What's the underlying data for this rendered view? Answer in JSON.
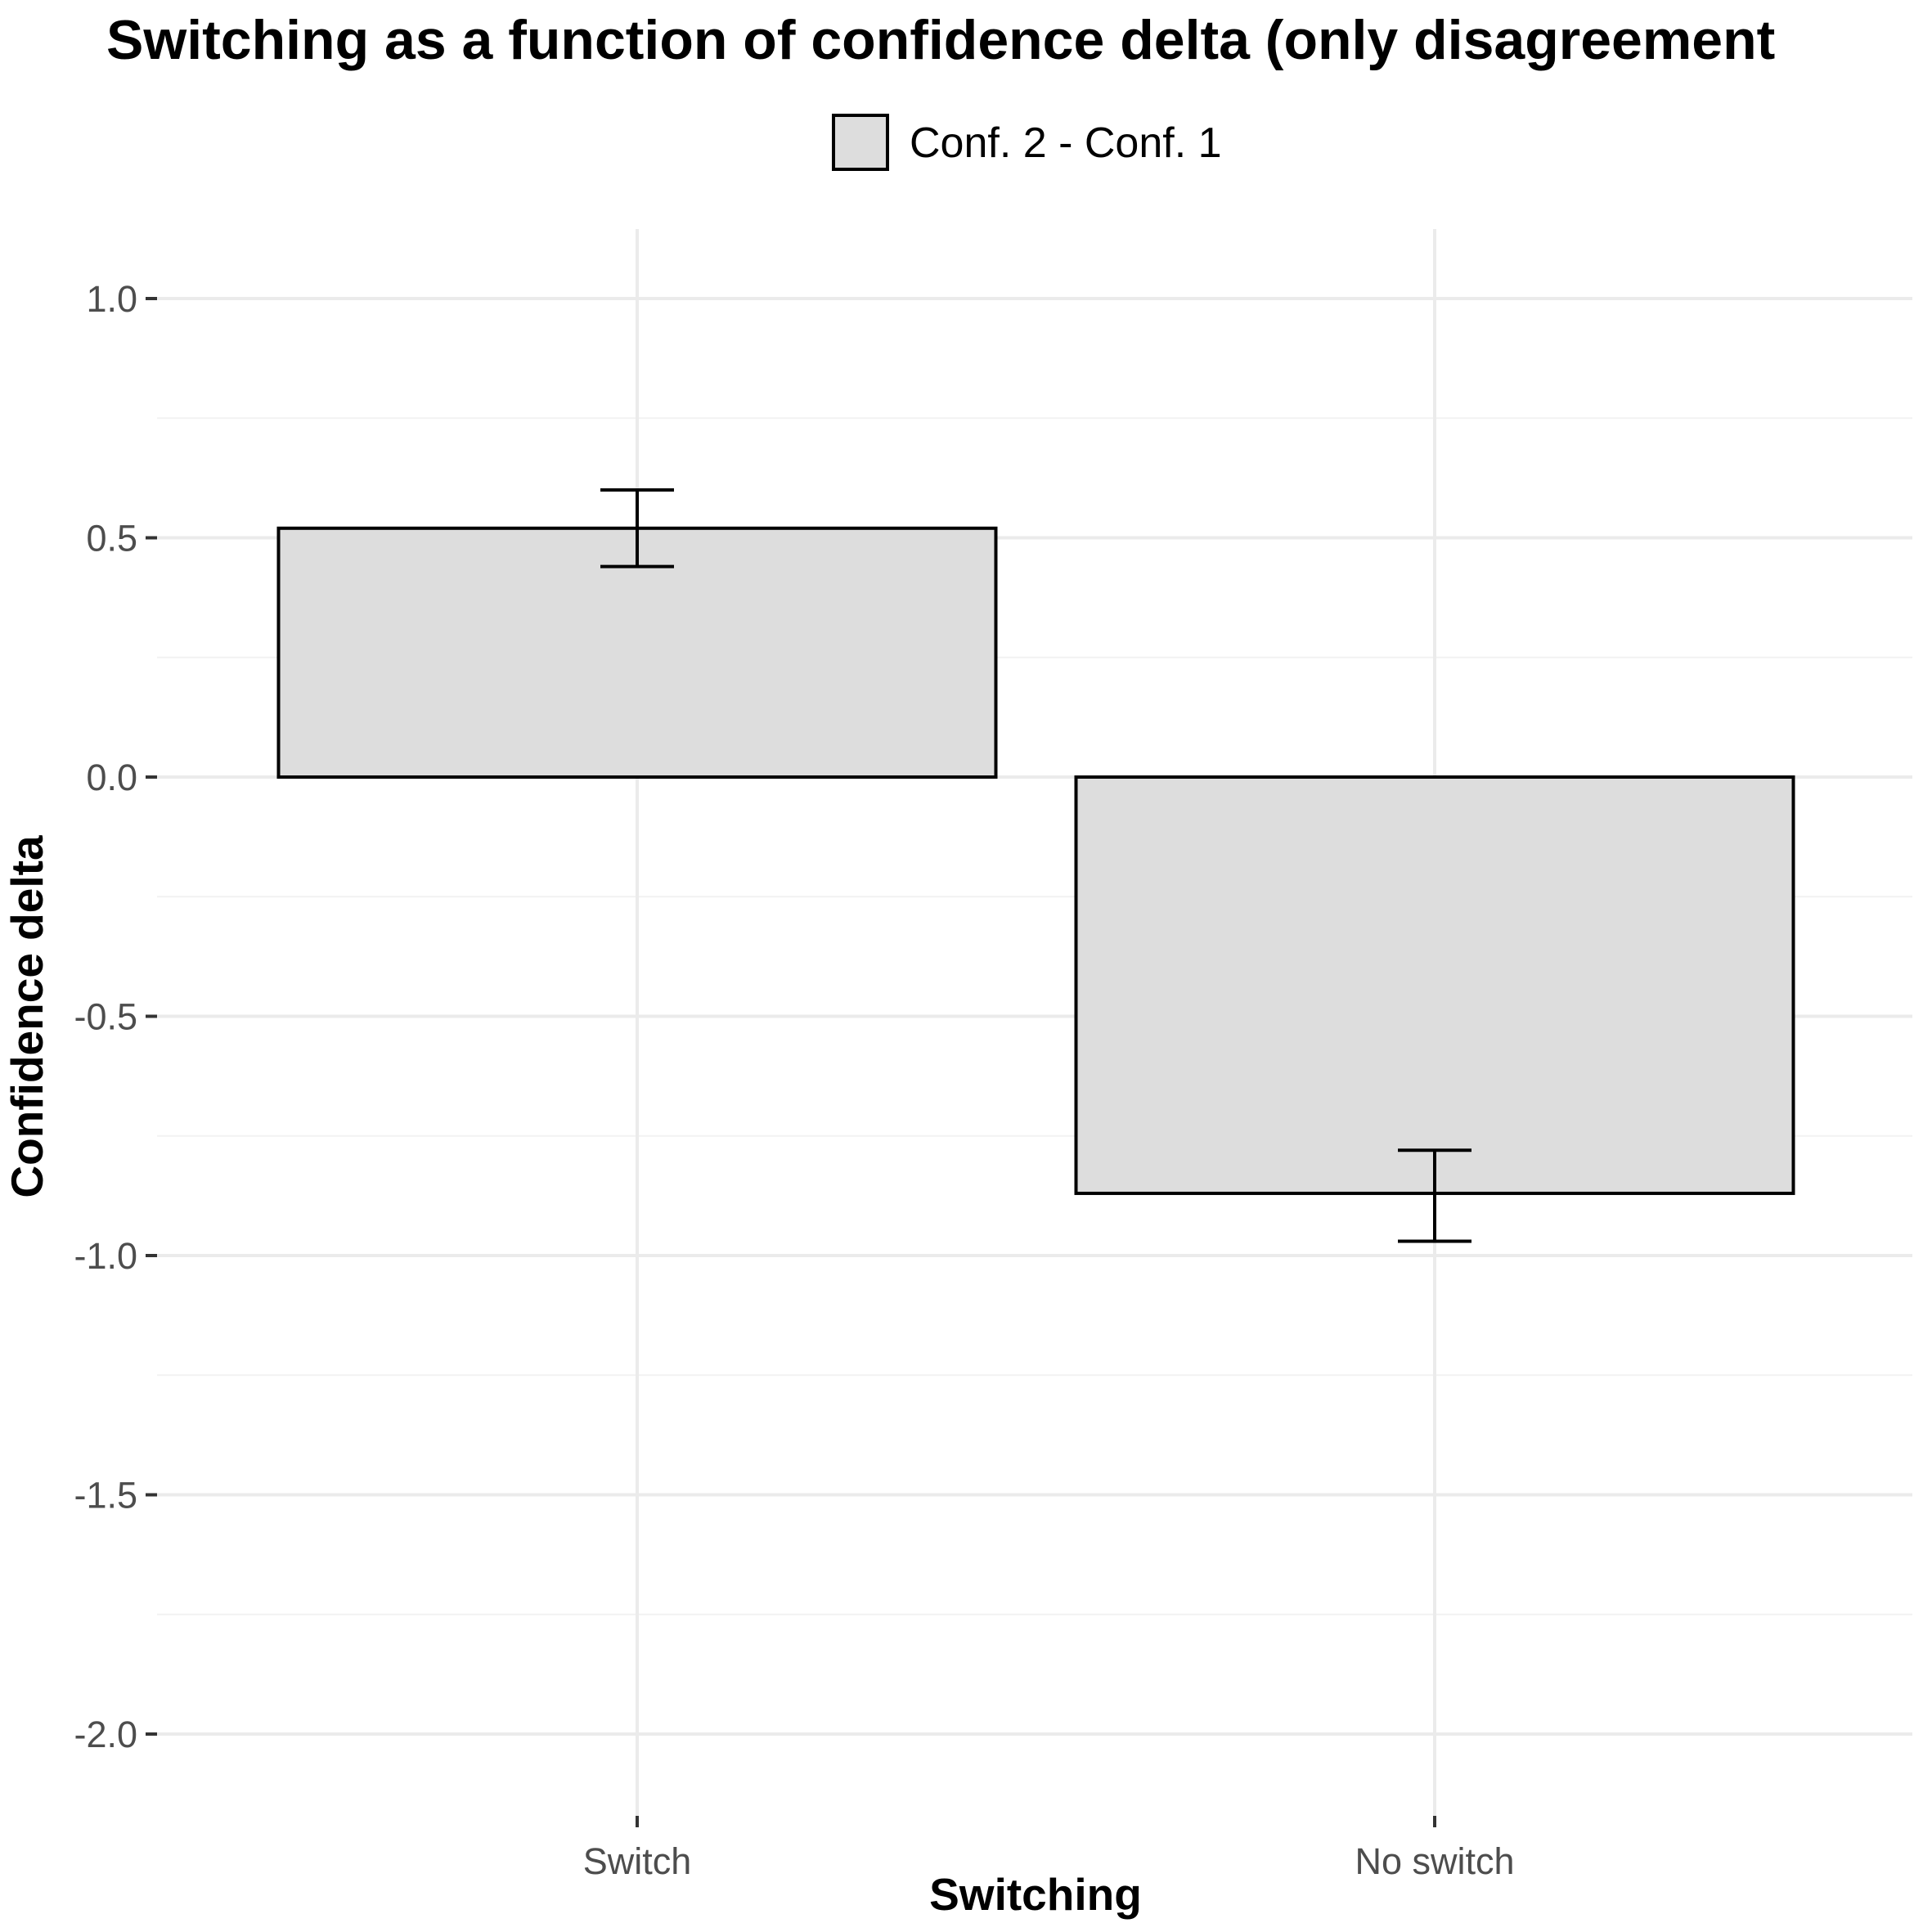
{
  "chart_data": {
    "type": "bar",
    "title": "Switching as a function of confidence delta (only disagreement",
    "xlabel": "Switching",
    "ylabel": "Confidence delta",
    "categories": [
      "Switch",
      "No switch"
    ],
    "series": [
      {
        "name": "Conf. 2 - Conf. 1",
        "values": [
          0.52,
          -0.87
        ],
        "error_low": [
          0.44,
          -0.97
        ],
        "error_high": [
          0.6,
          -0.78
        ]
      }
    ],
    "ylim": [
      -2.15,
      1.15
    ],
    "yticks": [
      1.0,
      0.5,
      0.0,
      -0.5,
      -1.0,
      -1.5,
      -2.0
    ],
    "ytick_labels": [
      "1.0",
      "0.5",
      "0.0",
      "-0.5",
      "-1.0",
      "-1.5",
      "-2.0"
    ],
    "grid": true,
    "legend_position": "top"
  },
  "colors": {
    "bar_fill": "#dddddd",
    "bar_stroke": "#000000",
    "grid_major": "#ebebeb",
    "grid_minor": "#f2f2f2",
    "tick_text": "#4d4d4d",
    "background": "#ffffff"
  }
}
